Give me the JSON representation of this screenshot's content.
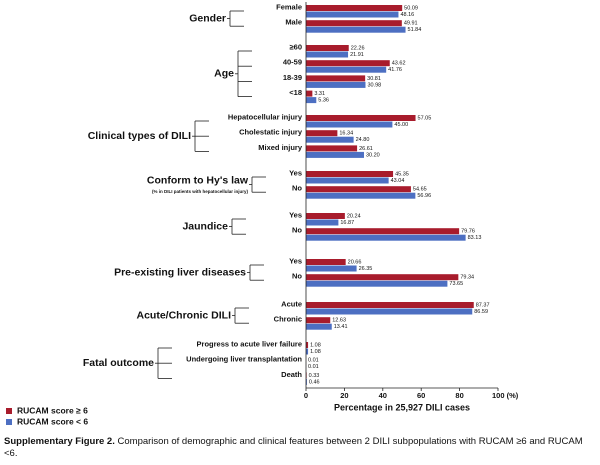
{
  "chart_data": {
    "type": "bar",
    "series": [
      {
        "name": "RUCAM score ≥ 6",
        "color": "#a81c2c"
      },
      {
        "name": "RUCAM score < 6",
        "color": "#4d6fc2"
      }
    ],
    "groups": [
      {
        "label": "Gender",
        "categories": [
          "Female",
          "Male"
        ],
        "series": [
          {
            "values": [
              50.09,
              49.91
            ],
            "value_labels": [
              "50.09",
              "49.91"
            ]
          },
          {
            "values": [
              48.16,
              51.84
            ],
            "value_labels": [
              "48.16",
              "51.84"
            ]
          }
        ]
      },
      {
        "label": "Age",
        "categories": [
          "≥60",
          "40-59",
          "18-39",
          "<18"
        ],
        "series": [
          {
            "values": [
              22.26,
              43.62,
              30.81,
              3.31
            ],
            "value_labels": [
              "22.26",
              "43.62",
              "30.81",
              "3.31"
            ]
          },
          {
            "values": [
              21.91,
              41.76,
              30.98,
              5.36
            ],
            "value_labels": [
              "21.91",
              "41.76",
              "30.98",
              "5.36"
            ]
          }
        ]
      },
      {
        "label": "Clinical types of DILI",
        "categories": [
          "Hepatocellular injury",
          "Cholestatic injury",
          "Mixed injury"
        ],
        "series": [
          {
            "values": [
              57.05,
              16.34,
              26.61
            ],
            "value_labels": [
              "57.05",
              "16.34",
              "26.61"
            ]
          },
          {
            "values": [
              45.0,
              24.8,
              30.2
            ],
            "value_labels": [
              "45.00",
              "24.80",
              "30.20"
            ]
          }
        ]
      },
      {
        "label": "Conform to Hy's law",
        "note": "(% in DILI patients with hepatocellular injury)",
        "categories": [
          "Yes",
          "No"
        ],
        "series": [
          {
            "values": [
              45.35,
              54.65
            ],
            "value_labels": [
              "45.35",
              "54.65"
            ]
          },
          {
            "values": [
              43.04,
              56.96
            ],
            "value_labels": [
              "43.04",
              "56.96"
            ]
          }
        ]
      },
      {
        "label": "Jaundice",
        "categories": [
          "Yes",
          "No"
        ],
        "series": [
          {
            "values": [
              20.24,
              79.76
            ],
            "value_labels": [
              "20.24",
              "79.76"
            ]
          },
          {
            "values": [
              16.87,
              83.13
            ],
            "value_labels": [
              "16.87",
              "83.13"
            ]
          }
        ]
      },
      {
        "label": "Pre-existing liver diseases",
        "categories": [
          "Yes",
          "No"
        ],
        "series": [
          {
            "values": [
              20.66,
              79.34
            ],
            "value_labels": [
              "20.66",
              "79.34"
            ]
          },
          {
            "values": [
              26.35,
              73.65
            ],
            "value_labels": [
              "26.35",
              "73.65"
            ]
          }
        ]
      },
      {
        "label": "Acute/Chronic DILI",
        "categories": [
          "Acute",
          "Chronic"
        ],
        "series": [
          {
            "values": [
              87.37,
              12.63
            ],
            "value_labels": [
              "87.37",
              "12.63"
            ]
          },
          {
            "values": [
              86.59,
              13.41
            ],
            "value_labels": [
              "86.59",
              "13.41"
            ]
          }
        ]
      },
      {
        "label": "Fatal outcome",
        "categories": [
          "Progress to acute liver failure",
          "Undergoing liver transplantation",
          "Death"
        ],
        "series": [
          {
            "values": [
              1.08,
              0.01,
              0.33
            ],
            "value_labels": [
              "1.08",
              "0.01",
              "0.33"
            ]
          },
          {
            "values": [
              1.08,
              0.01,
              0.46
            ],
            "value_labels": [
              "1.08",
              "0.01",
              "0.46"
            ]
          }
        ]
      }
    ],
    "xlim": [
      0,
      100
    ],
    "xticks": [
      0,
      20,
      40,
      60,
      80,
      {
        "value": 100,
        "label": "100 (%)"
      }
    ],
    "xlabel": "Percentage in 25,927 DILI cases",
    "caption_title": "Supplementary Figure 2.",
    "caption": "Comparison of demographic and clinical features between 2 DILI subpopulations with RUCAM ≥6 and RUCAM <6."
  }
}
